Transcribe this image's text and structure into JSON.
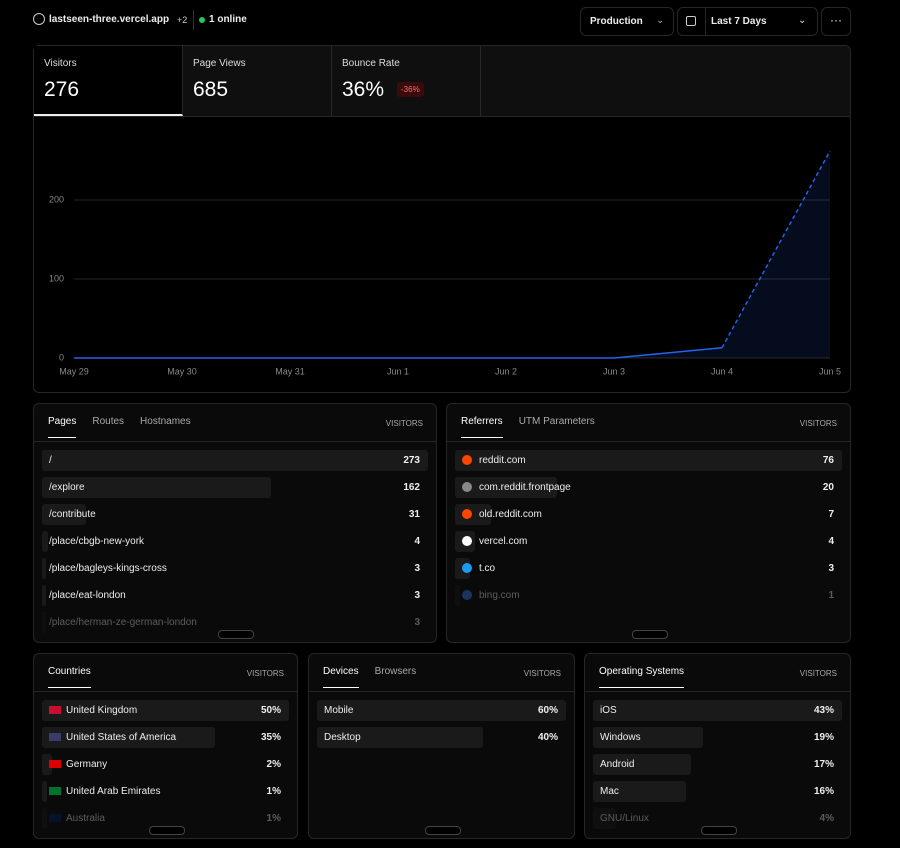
{
  "header": {
    "site": "lastseen-three.vercel.app",
    "extra": "+2",
    "online": "1 online",
    "environment": "Production",
    "range": "Last 7 Days"
  },
  "stats": [
    {
      "label": "Visitors",
      "value": "276"
    },
    {
      "label": "Page Views",
      "value": "685"
    },
    {
      "label": "Bounce Rate",
      "value": "36%",
      "change": "-36%"
    }
  ],
  "chart": {
    "type": "line",
    "categories": [
      "May 29",
      "May 30",
      "May 31",
      "Jun 1",
      "Jun 2",
      "Jun 3",
      "Jun 4",
      "Jun 5"
    ],
    "values": [
      0,
      0,
      0,
      0,
      0,
      0,
      13,
      262
    ],
    "color": "#2563eb",
    "ylim": [
      0,
      300
    ],
    "yticks": [
      0,
      100,
      200
    ],
    "grid": true
  },
  "panels": [
    {
      "tabs": [
        "Pages",
        "Routes",
        "Hostnames"
      ],
      "column": "VISITORS",
      "rows": [
        {
          "label": "/",
          "value": 273
        },
        {
          "label": "/explore",
          "value": 162
        },
        {
          "label": "/contribute",
          "value": 31
        },
        {
          "label": "/place/cbgb-new-york",
          "value": 4
        },
        {
          "label": "/place/bagleys-kings-cross",
          "value": 3
        },
        {
          "label": "/place/eat-london",
          "value": 3
        },
        {
          "label": "/place/herman-ze-german-london",
          "value": 3
        }
      ]
    },
    {
      "tabs": [
        "Referrers",
        "UTM Parameters"
      ],
      "column": "VISITORS",
      "rows": [
        {
          "label": "reddit.com",
          "value": 76
        },
        {
          "label": "com.reddit.frontpage",
          "value": 20
        },
        {
          "label": "old.reddit.com",
          "value": 7
        },
        {
          "label": "vercel.com",
          "value": 4
        },
        {
          "label": "t.co",
          "value": 3
        },
        {
          "label": "bing.com",
          "value": 1
        }
      ]
    },
    {
      "tabs": [
        "Countries"
      ],
      "column": "VISITORS",
      "rows": [
        {
          "label": "United Kingdom",
          "value": 50,
          "value_label": "50%"
        },
        {
          "label": "United States of America",
          "value": 35,
          "value_label": "35%"
        },
        {
          "label": "Germany",
          "value": 2,
          "value_label": "2%"
        },
        {
          "label": "United Arab Emirates",
          "value": 1,
          "value_label": "1%"
        },
        {
          "label": "Australia",
          "value": 1,
          "value_label": "1%"
        }
      ]
    },
    {
      "tabs": [
        "Devices",
        "Browsers"
      ],
      "column": "VISITORS",
      "rows": [
        {
          "label": "Mobile",
          "value": 60,
          "value_label": "60%"
        },
        {
          "label": "Desktop",
          "value": 40,
          "value_label": "40%"
        }
      ]
    },
    {
      "tabs": [
        "Operating Systems"
      ],
      "column": "VISITORS",
      "rows": [
        {
          "label": "iOS",
          "value": 43,
          "value_label": "43%"
        },
        {
          "label": "Windows",
          "value": 19,
          "value_label": "19%"
        },
        {
          "label": "Android",
          "value": 17,
          "value_label": "17%"
        },
        {
          "label": "Mac",
          "value": 16,
          "value_label": "16%"
        },
        {
          "label": "GNU/Linux",
          "value": 4,
          "value_label": "4%"
        }
      ]
    }
  ]
}
